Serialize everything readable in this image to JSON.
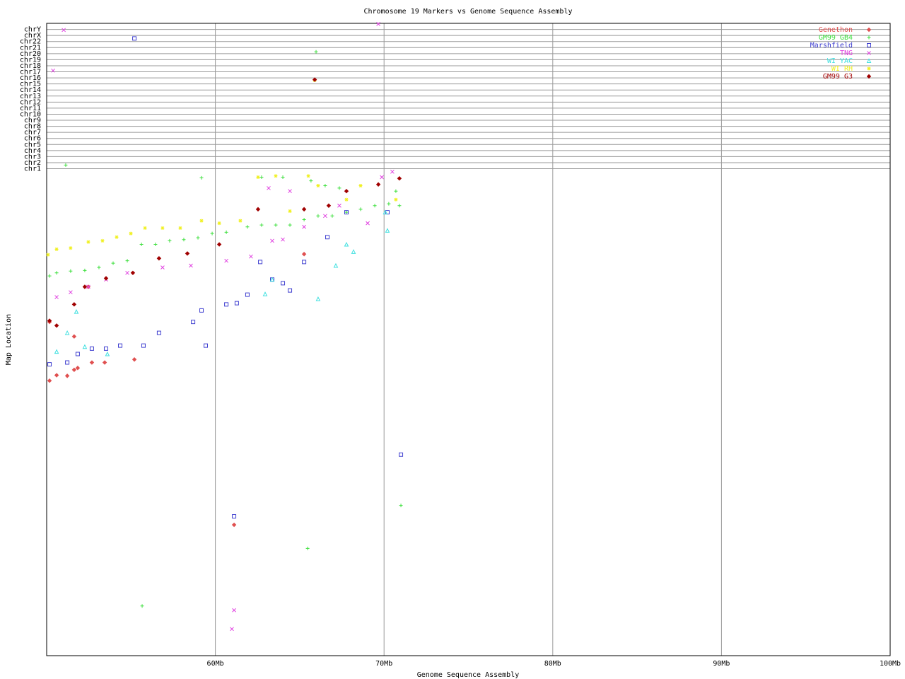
{
  "chart_data": {
    "type": "scatter",
    "title": "Chromosome 19 Markers vs Genome Sequence Assembly",
    "x_label": "Genome Sequence Assembly",
    "y_label": "Map Location",
    "xlim": [
      50,
      100
    ],
    "xticks": [
      {
        "value": 60,
        "label": "60Mb"
      },
      {
        "value": 70,
        "label": "70Mb"
      },
      {
        "value": 80,
        "label": "80Mb"
      },
      {
        "value": 90,
        "label": "90Mb"
      },
      {
        "value": 100,
        "label": "100Mb"
      }
    ],
    "ylim": [
      -79.4,
      25
    ],
    "yticks": [
      {
        "value": 1,
        "label": "chr1"
      },
      {
        "value": 2,
        "label": "chr2"
      },
      {
        "value": 3,
        "label": "chr3"
      },
      {
        "value": 4,
        "label": "chr4"
      },
      {
        "value": 5,
        "label": "chr5"
      },
      {
        "value": 6,
        "label": "chr6"
      },
      {
        "value": 7,
        "label": "chr7"
      },
      {
        "value": 8,
        "label": "chr8"
      },
      {
        "value": 9,
        "label": "chr9"
      },
      {
        "value": 10,
        "label": "chr10"
      },
      {
        "value": 11,
        "label": "chr11"
      },
      {
        "value": 12,
        "label": "chr12"
      },
      {
        "value": 13,
        "label": "chr13"
      },
      {
        "value": 14,
        "label": "chr14"
      },
      {
        "value": 15,
        "label": "chr15"
      },
      {
        "value": 16,
        "label": "chr16"
      },
      {
        "value": 17,
        "label": "chr17"
      },
      {
        "value": 18,
        "label": "chr18"
      },
      {
        "value": 19,
        "label": "chr19"
      },
      {
        "value": 20,
        "label": "chr20"
      },
      {
        "value": 21,
        "label": "chr21"
      },
      {
        "value": 22,
        "label": "chr22"
      },
      {
        "value": 23,
        "label": "chrX"
      },
      {
        "value": 24,
        "label": "chrY"
      }
    ],
    "grid": true,
    "legend": "upper right",
    "series": [
      {
        "name": "Genethon",
        "color": "#e05050",
        "marker": "diamond",
        "x": [
          50.17,
          50.59,
          51.22,
          51.63,
          51.84,
          52.68,
          53.44,
          55.2,
          65.26,
          61.11,
          50.17,
          51.63,
          52.47
        ],
        "values": [
          -34.0,
          -33.1,
          -33.2,
          -32.2,
          -31.9,
          -31.0,
          -31.0,
          -30.5,
          -13.1,
          -57.8,
          -24.3,
          -26.7,
          -18.5
        ]
      },
      {
        "name": "GM99 GB4",
        "color": "#40e040",
        "marker": "plus",
        "x": [
          50.17,
          50.59,
          51.42,
          52.26,
          53.1,
          53.94,
          54.78,
          55.62,
          56.45,
          57.29,
          58.13,
          58.97,
          59.81,
          60.65,
          61.9,
          62.74,
          63.58,
          64.42,
          65.26,
          66.09,
          66.93,
          67.77,
          68.61,
          69.45,
          70.28,
          70.91,
          62.74,
          64.0,
          65.67,
          66.51,
          67.35,
          70.7,
          51.13,
          65.97,
          59.18,
          55.66,
          65.47,
          71.0
        ],
        "values": [
          -16.7,
          -16.2,
          -15.9,
          -15.8,
          -15.3,
          -14.6,
          -14.2,
          -11.5,
          -11.5,
          -10.9,
          -10.7,
          -10.4,
          -9.7,
          -9.5,
          -8.6,
          -8.3,
          -8.3,
          -8.3,
          -7.4,
          -6.8,
          -6.8,
          -6.2,
          -5.7,
          -5.1,
          -4.8,
          -5.1,
          -0.4,
          -0.4,
          -1.0,
          -1.8,
          -2.2,
          -2.7,
          1.6,
          20.3,
          -0.5,
          -71.2,
          -61.7,
          -54.6
        ]
      },
      {
        "name": "Marshfield",
        "color": "#4040d0",
        "marker": "square",
        "x": [
          55.2,
          50.17,
          51.22,
          51.84,
          52.68,
          53.52,
          54.36,
          55.74,
          56.66,
          58.68,
          59.18,
          59.43,
          60.65,
          61.27,
          61.9,
          62.66,
          63.37,
          64.0,
          64.42,
          65.26,
          66.64,
          67.77,
          70.2,
          71.0,
          61.11
        ],
        "values": [
          22.5,
          -31.3,
          -31.0,
          -29.6,
          -28.7,
          -28.7,
          -28.2,
          -28.2,
          -26.1,
          -24.3,
          -22.4,
          -28.2,
          -21.4,
          -21.2,
          -19.8,
          -14.4,
          -17.3,
          -17.9,
          -19.1,
          -14.4,
          -10.3,
          -6.2,
          -6.2,
          -46.2,
          -56.4
        ]
      },
      {
        "name": "TNG",
        "color": "#e040e0",
        "marker": "cross",
        "x": [
          51.01,
          69.66,
          50.38,
          50.59,
          51.42,
          52.47,
          53.52,
          54.78,
          56.87,
          58.55,
          60.65,
          62.11,
          63.37,
          64.0,
          65.26,
          66.51,
          67.35,
          69.03,
          69.87,
          70.49,
          63.16,
          64.42,
          61.11,
          60.98
        ],
        "values": [
          23.9,
          24.9,
          17.2,
          -20.2,
          -19.4,
          -18.5,
          -17.3,
          -16.2,
          -15.3,
          -15.0,
          -14.2,
          -13.5,
          -10.9,
          -10.7,
          -8.6,
          -6.8,
          -5.1,
          -8.0,
          -0.4,
          0.5,
          -2.2,
          -2.7,
          -71.9,
          -75.0
        ]
      },
      {
        "name": "WI YAC",
        "color": "#40e0e0",
        "marker": "triangle",
        "x": [
          50.59,
          51.22,
          51.76,
          52.26,
          53.6,
          62.95,
          63.37,
          66.09,
          67.14,
          67.77,
          68.19,
          70.2,
          70.07
        ],
        "values": [
          -29.2,
          -26.1,
          -22.6,
          -28.4,
          -29.6,
          -19.7,
          -17.3,
          -20.5,
          -15.0,
          -11.5,
          -12.7,
          -9.2,
          -6.2
        ]
      },
      {
        "name": "WI RH",
        "color": "#f0f020",
        "marker": "star",
        "x": [
          50.08,
          50.59,
          51.42,
          52.47,
          53.31,
          54.15,
          54.99,
          55.83,
          56.87,
          57.92,
          59.18,
          60.23,
          61.48,
          62.53,
          63.58,
          64.42,
          65.51,
          66.09,
          67.77,
          68.61,
          70.7,
          65.89
        ],
        "values": [
          -13.2,
          -12.3,
          -12.1,
          -11.1,
          -10.9,
          -10.3,
          -9.7,
          -8.8,
          -8.8,
          -8.8,
          -7.6,
          -8.0,
          -7.6,
          -0.4,
          -0.2,
          -6.0,
          -0.2,
          -1.8,
          -4.1,
          -1.8,
          -4.1,
          15.6
        ]
      },
      {
        "name": "GM99 G3",
        "color": "#a00000",
        "marker": "diamond",
        "x": [
          50.17,
          50.59,
          51.63,
          52.26,
          53.52,
          55.11,
          56.66,
          58.34,
          60.23,
          62.53,
          65.26,
          66.72,
          67.77,
          69.66,
          70.91,
          65.89
        ],
        "values": [
          -24.1,
          -24.9,
          -21.4,
          -18.5,
          -17.1,
          -16.2,
          -13.8,
          -13.0,
          -11.5,
          -5.7,
          -5.7,
          -5.1,
          -2.7,
          -1.6,
          -0.6,
          15.7
        ]
      }
    ]
  }
}
